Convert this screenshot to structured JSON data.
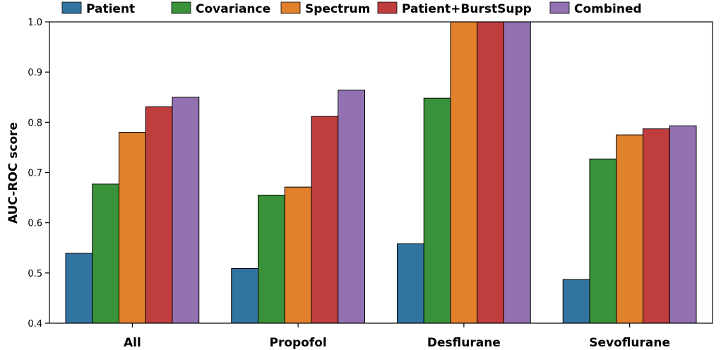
{
  "chart_data": {
    "type": "bar",
    "title": "",
    "xlabel": "",
    "ylabel": "AUC-ROC score",
    "ylim": [
      0.4,
      1.0
    ],
    "yticks": [
      "0.4",
      "0.5",
      "0.6",
      "0.7",
      "0.8",
      "0.9",
      "1.0"
    ],
    "categories": [
      "All",
      "Propofol",
      "Desflurane",
      "Sevoflurane"
    ],
    "legend_position": "top",
    "grid": false,
    "series": [
      {
        "name": "Patient",
        "color": "#3274a1",
        "values": [
          0.539,
          0.509,
          0.558,
          0.487
        ]
      },
      {
        "name": "Covariance",
        "color": "#3a923a",
        "values": [
          0.677,
          0.655,
          0.848,
          0.727
        ]
      },
      {
        "name": "Spectrum",
        "color": "#e1812c",
        "values": [
          0.78,
          0.671,
          1.0,
          0.775
        ]
      },
      {
        "name": "Patient+BurstSupp",
        "color": "#c03d3e",
        "values": [
          0.831,
          0.812,
          1.0,
          0.787
        ]
      },
      {
        "name": "Combined",
        "color": "#9372b2",
        "values": [
          0.85,
          0.864,
          1.0,
          0.793
        ]
      }
    ]
  }
}
